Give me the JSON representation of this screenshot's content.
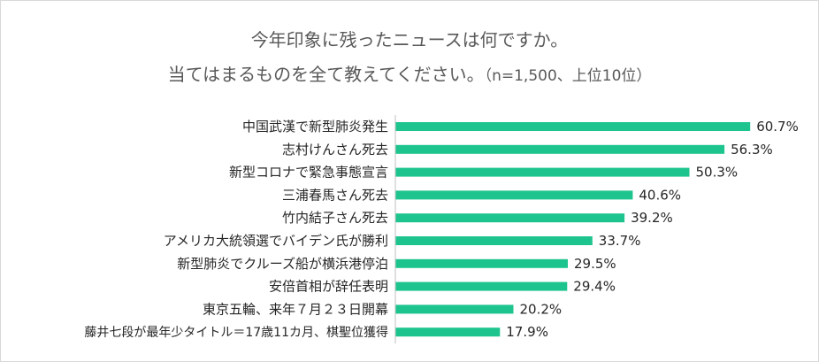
{
  "chart_data": {
    "type": "bar",
    "orientation": "horizontal",
    "title": "今年印象に残ったニュースは何ですか。",
    "subtitle": "当てはまるものを全て教えてください。",
    "subtitle_note": "（n=1,500、上位10位）",
    "categories": [
      "中国武漢で新型肺炎発生",
      "志村けんさん死去",
      "新型コロナで緊急事態宣言",
      "三浦春馬さん死去",
      "竹内結子さん死去",
      "アメリカ大統領選でバイデン氏が勝利",
      "新型肺炎でクルーズ船が横浜港停泊",
      "安倍首相が辞任表明",
      "東京五輪、来年７月２３日開幕",
      "藤井七段が最年少タイトル＝17歳11カ月、棋聖位獲得"
    ],
    "values": [
      60.7,
      56.3,
      50.3,
      40.6,
      39.2,
      33.7,
      29.5,
      29.4,
      20.2,
      17.9
    ],
    "value_labels": [
      "60.7%",
      "56.3%",
      "50.3%",
      "40.6%",
      "39.2%",
      "33.7%",
      "29.5%",
      "29.4%",
      "20.2%",
      "17.9%"
    ],
    "xlim": [
      0,
      100
    ],
    "bar_color": "#1ec48e",
    "axis_line_color": "#bfbfbf",
    "grid": false,
    "legend": false
  }
}
